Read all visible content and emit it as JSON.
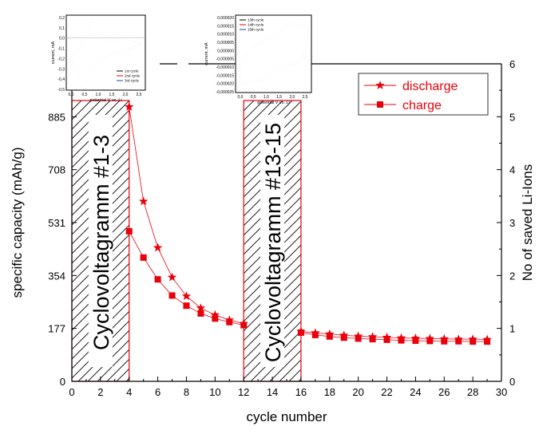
{
  "chart_data": {
    "type": "scatter",
    "xlabel": "cycle number",
    "ylabel_left": "specific capacity (mAh/g)",
    "ylabel_right": "No of saved Li-Ions",
    "xlim": [
      0,
      30
    ],
    "ylim_left": [
      0,
      1062
    ],
    "ylim_right": [
      0,
      6
    ],
    "x_ticks": [
      0,
      2,
      4,
      6,
      8,
      10,
      12,
      14,
      16,
      18,
      20,
      22,
      24,
      26,
      28,
      30
    ],
    "y_ticks_left": [
      0,
      177,
      354,
      531,
      708,
      885
    ],
    "y_ticks_right": [
      0,
      1,
      2,
      3,
      4,
      5,
      6
    ],
    "legend_position": "top-right",
    "color": "#e8000b",
    "series": [
      {
        "name": "discharge",
        "marker": "star",
        "x": [
          4,
          5,
          6,
          7,
          8,
          9,
          10,
          11,
          12,
          16,
          17,
          18,
          19,
          20,
          21,
          22,
          23,
          24,
          25,
          26,
          27,
          28,
          29
        ],
        "y": [
          918,
          602,
          447,
          348,
          285,
          245,
          222,
          205,
          193,
          167,
          162,
          158,
          154,
          151,
          149,
          147,
          145,
          144,
          143,
          142,
          141,
          141,
          140
        ]
      },
      {
        "name": "charge",
        "marker": "square",
        "x": [
          4,
          5,
          6,
          7,
          8,
          9,
          10,
          11,
          12,
          16,
          17,
          18,
          19,
          20,
          21,
          22,
          23,
          24,
          25,
          26,
          27,
          28,
          29
        ],
        "y": [
          502,
          414,
          341,
          287,
          253,
          227,
          210,
          198,
          188,
          163,
          155,
          150,
          146,
          143,
          141,
          139,
          137,
          136,
          135,
          134,
          134,
          133,
          133
        ]
      }
    ],
    "shaded_regions": [
      {
        "x_range": [
          0,
          4
        ],
        "label": "Cyclovoltagramm #1-3"
      },
      {
        "x_range": [
          12,
          16
        ],
        "label": "Cyclovoltagramm #13-15"
      }
    ],
    "insets": [
      {
        "x_label": "potential V vs. Li",
        "y_label": "current, mA",
        "x_ticks": [
          "0,0",
          "0,5",
          "1,0",
          "1,5",
          "2,0",
          "2,5"
        ],
        "y_ticks": [
          "0,2",
          "0,1",
          "0,0",
          "-0,1",
          "-0,2",
          "-0,3",
          "-0,4",
          "-0,5"
        ],
        "legend": [
          "1st cycle",
          "2nd cycle",
          "3rd cycle"
        ],
        "legend_colors": [
          "#000000",
          "#e8000b",
          "#1f3fbf"
        ]
      },
      {
        "x_label": "potential V vs. Li",
        "y_label": "current, mA",
        "x_ticks": [
          "0,0",
          "0,5",
          "1,0",
          "1,5",
          "2,0",
          "2,5"
        ],
        "y_ticks": [
          "0,000020",
          "0,000015",
          "0,000010",
          "0,000005",
          "0,000000",
          "-0,000005",
          "-0,000010",
          "-0,000015",
          "-0,000020",
          "-0,000025"
        ],
        "legend": [
          "13th cycle",
          "14th cycle",
          "15th cycle"
        ],
        "legend_colors": [
          "#000000",
          "#e8000b",
          "#1f3fbf"
        ]
      }
    ]
  }
}
